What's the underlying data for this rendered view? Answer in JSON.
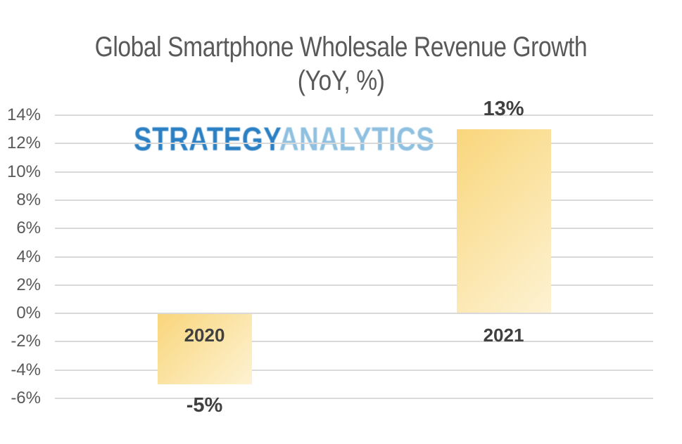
{
  "page": {
    "background": "#ffffff"
  },
  "chart_data": {
    "type": "bar",
    "title": "Global Smartphone Wholesale Revenue Growth",
    "subtitle": "(YoY, %)",
    "categories": [
      "2020",
      "2021"
    ],
    "values": [
      -5,
      13
    ],
    "value_labels": [
      "-5%",
      "13%"
    ],
    "yticks": [
      14,
      12,
      10,
      8,
      6,
      4,
      2,
      0,
      -2,
      -4,
      -6
    ],
    "ytick_labels": [
      "14%",
      "12%",
      "10%",
      "8%",
      "6%",
      "4%",
      "2%",
      "0%",
      "-2%",
      "-4%",
      "-6%"
    ],
    "ylim": [
      -6,
      14
    ],
    "ytick_step": 2,
    "grid": true,
    "legend": false,
    "xlabel": "",
    "ylabel": "",
    "colors": {
      "bar_gradient_start": "#f9d67c",
      "bar_gradient_end": "#fdf2d2",
      "gridline": "#d9d9d9",
      "title_text": "#595959",
      "axis_text": "#595959",
      "data_label_text": "#404040"
    }
  },
  "watermark": {
    "text_primary": "STRATEGY",
    "text_secondary": "ANALYTICS",
    "color_primary": "#2b80c4",
    "color_secondary": "#8fc0e0"
  }
}
